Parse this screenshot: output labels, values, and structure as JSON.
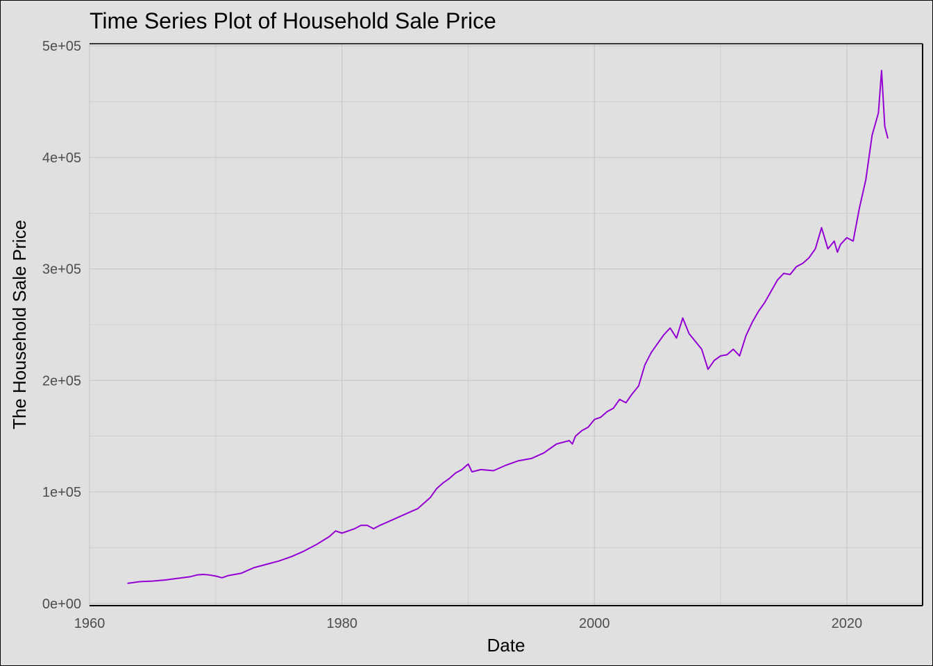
{
  "chart_data": {
    "type": "line",
    "title": "Time Series Plot of Household Sale Price",
    "xlabel": "Date",
    "ylabel": "The Household Sale Price",
    "xlim": [
      1960,
      2026
    ],
    "ylim": [
      -2000,
      502000
    ],
    "x_ticks": [
      1960,
      1980,
      2000,
      2020
    ],
    "x_tick_labels": [
      "1960",
      "1980",
      "2000",
      "2020"
    ],
    "y_ticks": [
      0,
      100000,
      200000,
      300000,
      400000,
      500000
    ],
    "y_tick_labels": [
      "0e+00",
      "1e+05",
      "2e+05",
      "3e+05",
      "4e+05",
      "5e+05"
    ],
    "grid": true,
    "line_color": "#9400d3",
    "background_color": "#e0e0e0",
    "grid_color": "#c4c4c4",
    "series": [
      {
        "x": [
          1963.0,
          1964.0,
          1965.0,
          1966.0,
          1967.0,
          1968.0,
          1968.5,
          1969.0,
          1969.5,
          1970.0,
          1970.5,
          1971.0,
          1972.0,
          1973.0,
          1974.0,
          1975.0,
          1976.0,
          1977.0,
          1978.0,
          1979.0,
          1979.5,
          1980.0,
          1981.0,
          1981.5,
          1982.0,
          1982.5,
          1983.0,
          1984.0,
          1985.0,
          1986.0,
          1987.0,
          1987.5,
          1988.0,
          1988.5,
          1989.0,
          1989.5,
          1990.0,
          1990.3,
          1991.0,
          1992.0,
          1993.0,
          1994.0,
          1995.0,
          1996.0,
          1997.0,
          1998.0,
          1998.25,
          1998.5,
          1999.0,
          1999.5,
          2000.0,
          2000.5,
          2001.0,
          2001.5,
          2002.0,
          2002.5,
          2003.0,
          2003.5,
          2004.0,
          2004.5,
          2005.0,
          2005.5,
          2006.0,
          2006.5,
          2007.0,
          2007.5,
          2008.0,
          2008.5,
          2009.0,
          2009.5,
          2010.0,
          2010.5,
          2011.0,
          2011.5,
          2012.0,
          2012.5,
          2013.0,
          2013.5,
          2014.0,
          2014.5,
          2015.0,
          2015.5,
          2016.0,
          2016.5,
          2017.0,
          2017.5,
          2018.0,
          2018.5,
          2019.0,
          2019.25,
          2019.5,
          2020.0,
          2020.5,
          2021.0,
          2021.5,
          2022.0,
          2022.5,
          2022.75,
          2023.0,
          2023.25
        ],
        "values": [
          18000,
          19500,
          20000,
          21000,
          22500,
          24000,
          25500,
          26000,
          25500,
          24500,
          23000,
          25000,
          27000,
          32000,
          35000,
          38000,
          42000,
          47000,
          53000,
          60000,
          65000,
          63000,
          67000,
          70000,
          70000,
          67000,
          70000,
          75000,
          80000,
          85000,
          95000,
          103000,
          108000,
          112000,
          117000,
          120000,
          125000,
          118000,
          120000,
          119000,
          124000,
          128000,
          130000,
          135000,
          143000,
          146000,
          143000,
          150000,
          155000,
          158000,
          165000,
          167000,
          172000,
          175000,
          183000,
          180000,
          188000,
          195000,
          214000,
          225000,
          233000,
          241000,
          247000,
          238000,
          256000,
          242000,
          235000,
          228000,
          210000,
          218000,
          222000,
          223000,
          228000,
          222000,
          240000,
          252000,
          262000,
          270000,
          280000,
          290000,
          296000,
          295000,
          302000,
          305000,
          310000,
          318000,
          337000,
          318000,
          325000,
          315000,
          322000,
          328000,
          325000,
          355000,
          380000,
          420000,
          440000,
          478000,
          428000,
          417000
        ]
      }
    ]
  }
}
